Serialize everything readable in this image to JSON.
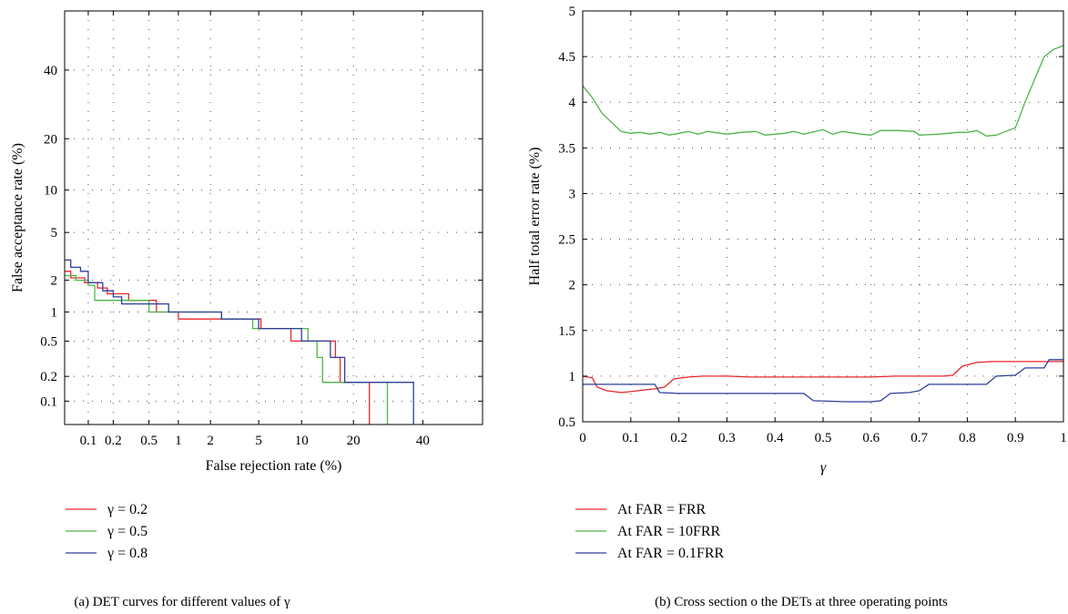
{
  "chart_data": [
    {
      "id": "det",
      "type": "line",
      "xlabel": "False rejection rate (%)",
      "ylabel": "False acceptance rate (%)",
      "x_scale": "probit",
      "y_scale": "probit",
      "xlim": [
        0.05,
        60
      ],
      "ylim": [
        0.05,
        60
      ],
      "grid": true,
      "xticks": [
        0.1,
        0.2,
        0.5,
        1,
        2,
        5,
        10,
        20,
        40
      ],
      "xtick_labels": [
        "0.1",
        "0.2",
        "0.5",
        "1",
        "2",
        "5",
        "10",
        "20",
        "40"
      ],
      "yticks": [
        0.1,
        0.2,
        0.5,
        1,
        2,
        5,
        10,
        20,
        40
      ],
      "ytick_labels": [
        "0.1",
        "0.2",
        "0.5",
        "1",
        "2",
        "5",
        "10",
        "20",
        "40"
      ],
      "legend_position": "below",
      "series": [
        {
          "name": "γ = 0.2",
          "color": "#e8262a",
          "points": [
            [
              0.05,
              2.4
            ],
            [
              0.06,
              2.4
            ],
            [
              0.06,
              2.1
            ],
            [
              0.09,
              2.1
            ],
            [
              0.09,
              1.9
            ],
            [
              0.13,
              1.9
            ],
            [
              0.13,
              1.7
            ],
            [
              0.17,
              1.7
            ],
            [
              0.17,
              1.5
            ],
            [
              0.3,
              1.5
            ],
            [
              0.3,
              1.3
            ],
            [
              0.6,
              1.3
            ],
            [
              0.6,
              1.0
            ],
            [
              1.0,
              1.0
            ],
            [
              1.0,
              0.85
            ],
            [
              2.5,
              0.85
            ],
            [
              2.5,
              0.85
            ],
            [
              5.2,
              0.85
            ],
            [
              5.2,
              0.68
            ],
            [
              8.5,
              0.68
            ],
            [
              8.5,
              0.5
            ],
            [
              13,
              0.5
            ],
            [
              13,
              0.5
            ],
            [
              16,
              0.5
            ],
            [
              16,
              0.33
            ],
            [
              17,
              0.33
            ],
            [
              17,
              0.17
            ],
            [
              24,
              0.17
            ],
            [
              24,
              0.05
            ]
          ]
        },
        {
          "name": "γ = 0.5",
          "color": "#4db547",
          "points": [
            [
              0.05,
              2.2
            ],
            [
              0.07,
              2.2
            ],
            [
              0.07,
              2.0
            ],
            [
              0.1,
              2.0
            ],
            [
              0.1,
              1.8
            ],
            [
              0.12,
              1.8
            ],
            [
              0.12,
              1.3
            ],
            [
              0.3,
              1.3
            ],
            [
              0.3,
              1.3
            ],
            [
              0.5,
              1.3
            ],
            [
              0.5,
              1.0
            ],
            [
              1.0,
              1.0
            ],
            [
              1.0,
              1.0
            ],
            [
              2.5,
              1.0
            ],
            [
              2.5,
              0.85
            ],
            [
              4.5,
              0.85
            ],
            [
              4.5,
              0.68
            ],
            [
              11,
              0.68
            ],
            [
              11,
              0.5
            ],
            [
              12.5,
              0.5
            ],
            [
              12.5,
              0.33
            ],
            [
              13.5,
              0.33
            ],
            [
              13.5,
              0.17
            ],
            [
              29,
              0.17
            ],
            [
              29,
              0.05
            ]
          ]
        },
        {
          "name": "γ = 0.8",
          "color": "#2e3f9a",
          "points": [
            [
              0.05,
              3.0
            ],
            [
              0.06,
              3.0
            ],
            [
              0.06,
              2.6
            ],
            [
              0.08,
              2.6
            ],
            [
              0.08,
              2.4
            ],
            [
              0.1,
              2.4
            ],
            [
              0.1,
              1.9
            ],
            [
              0.15,
              1.9
            ],
            [
              0.15,
              1.6
            ],
            [
              0.2,
              1.6
            ],
            [
              0.2,
              1.4
            ],
            [
              0.25,
              1.4
            ],
            [
              0.25,
              1.2
            ],
            [
              0.4,
              1.2
            ],
            [
              0.4,
              1.2
            ],
            [
              0.8,
              1.2
            ],
            [
              0.8,
              1.0
            ],
            [
              2.5,
              1.0
            ],
            [
              2.5,
              0.85
            ],
            [
              5.0,
              0.85
            ],
            [
              5.0,
              0.68
            ],
            [
              10,
              0.68
            ],
            [
              10,
              0.5
            ],
            [
              15,
              0.5
            ],
            [
              15,
              0.33
            ],
            [
              18,
              0.33
            ],
            [
              18,
              0.17
            ],
            [
              37,
              0.17
            ],
            [
              37,
              0.05
            ]
          ]
        }
      ]
    },
    {
      "id": "hter",
      "type": "line",
      "xlabel": "γ",
      "ylabel": "Half total error rate (%)",
      "xlim": [
        0,
        1
      ],
      "ylim": [
        0.5,
        5
      ],
      "grid": true,
      "xticks": [
        0,
        0.1,
        0.2,
        0.3,
        0.4,
        0.5,
        0.6,
        0.7,
        0.8,
        0.9,
        1
      ],
      "xtick_labels": [
        "0",
        "0.1",
        "0.2",
        "0.3",
        "0.4",
        "0.5",
        "0.6",
        "0.7",
        "0.8",
        "0.9",
        "1"
      ],
      "yticks": [
        0.5,
        1,
        1.5,
        2,
        2.5,
        3,
        3.5,
        4,
        4.5,
        5
      ],
      "ytick_labels": [
        "0.5",
        "1",
        "1.5",
        "2",
        "2.5",
        "3",
        "3.5",
        "4",
        "4.5",
        "5"
      ],
      "legend_position": "below",
      "series": [
        {
          "name": "At FAR = FRR",
          "color": "#e8262a",
          "points": [
            [
              0,
              1.0
            ],
            [
              0.02,
              0.98
            ],
            [
              0.03,
              0.88
            ],
            [
              0.05,
              0.84
            ],
            [
              0.08,
              0.82
            ],
            [
              0.1,
              0.83
            ],
            [
              0.13,
              0.85
            ],
            [
              0.15,
              0.86
            ],
            [
              0.17,
              0.88
            ],
            [
              0.19,
              0.97
            ],
            [
              0.22,
              0.99
            ],
            [
              0.25,
              1.0
            ],
            [
              0.3,
              1.0
            ],
            [
              0.35,
              0.99
            ],
            [
              0.4,
              0.99
            ],
            [
              0.45,
              0.99
            ],
            [
              0.5,
              0.99
            ],
            [
              0.55,
              0.99
            ],
            [
              0.6,
              0.99
            ],
            [
              0.65,
              1.0
            ],
            [
              0.7,
              1.0
            ],
            [
              0.75,
              1.0
            ],
            [
              0.77,
              1.01
            ],
            [
              0.79,
              1.11
            ],
            [
              0.82,
              1.15
            ],
            [
              0.85,
              1.16
            ],
            [
              0.9,
              1.16
            ],
            [
              0.95,
              1.16
            ],
            [
              1.0,
              1.16
            ]
          ]
        },
        {
          "name": "At FAR = 10FRR",
          "color": "#4db547",
          "points": [
            [
              0,
              4.18
            ],
            [
              0.02,
              4.05
            ],
            [
              0.04,
              3.88
            ],
            [
              0.06,
              3.78
            ],
            [
              0.08,
              3.68
            ],
            [
              0.1,
              3.66
            ],
            [
              0.12,
              3.67
            ],
            [
              0.14,
              3.65
            ],
            [
              0.16,
              3.67
            ],
            [
              0.18,
              3.64
            ],
            [
              0.2,
              3.66
            ],
            [
              0.22,
              3.68
            ],
            [
              0.24,
              3.65
            ],
            [
              0.26,
              3.68
            ],
            [
              0.3,
              3.65
            ],
            [
              0.33,
              3.67
            ],
            [
              0.36,
              3.68
            ],
            [
              0.38,
              3.64
            ],
            [
              0.42,
              3.66
            ],
            [
              0.44,
              3.68
            ],
            [
              0.46,
              3.65
            ],
            [
              0.5,
              3.7
            ],
            [
              0.52,
              3.65
            ],
            [
              0.54,
              3.68
            ],
            [
              0.58,
              3.65
            ],
            [
              0.6,
              3.64
            ],
            [
              0.62,
              3.69
            ],
            [
              0.66,
              3.69
            ],
            [
              0.69,
              3.68
            ],
            [
              0.7,
              3.64
            ],
            [
              0.74,
              3.65
            ],
            [
              0.78,
              3.67
            ],
            [
              0.8,
              3.67
            ],
            [
              0.82,
              3.69
            ],
            [
              0.84,
              3.63
            ],
            [
              0.86,
              3.64
            ],
            [
              0.88,
              3.68
            ],
            [
              0.9,
              3.72
            ],
            [
              0.92,
              4.0
            ],
            [
              0.94,
              4.25
            ],
            [
              0.96,
              4.5
            ],
            [
              0.98,
              4.58
            ],
            [
              1.0,
              4.62
            ]
          ]
        },
        {
          "name": "At FAR = 0.1FRR",
          "color": "#2e3f9a",
          "points": [
            [
              0,
              0.91
            ],
            [
              0.05,
              0.91
            ],
            [
              0.1,
              0.91
            ],
            [
              0.15,
              0.91
            ],
            [
              0.16,
              0.82
            ],
            [
              0.2,
              0.81
            ],
            [
              0.3,
              0.81
            ],
            [
              0.4,
              0.81
            ],
            [
              0.46,
              0.81
            ],
            [
              0.48,
              0.73
            ],
            [
              0.55,
              0.72
            ],
            [
              0.6,
              0.72
            ],
            [
              0.62,
              0.73
            ],
            [
              0.64,
              0.81
            ],
            [
              0.68,
              0.82
            ],
            [
              0.7,
              0.84
            ],
            [
              0.72,
              0.91
            ],
            [
              0.8,
              0.91
            ],
            [
              0.84,
              0.91
            ],
            [
              0.86,
              1.0
            ],
            [
              0.9,
              1.01
            ],
            [
              0.92,
              1.09
            ],
            [
              0.96,
              1.09
            ],
            [
              0.97,
              1.18
            ],
            [
              1.0,
              1.18
            ]
          ]
        }
      ]
    }
  ],
  "captions": {
    "a": "(a)  DET curves for different values of γ",
    "b": "(b)  Cross section o the DETs at three operating points"
  }
}
